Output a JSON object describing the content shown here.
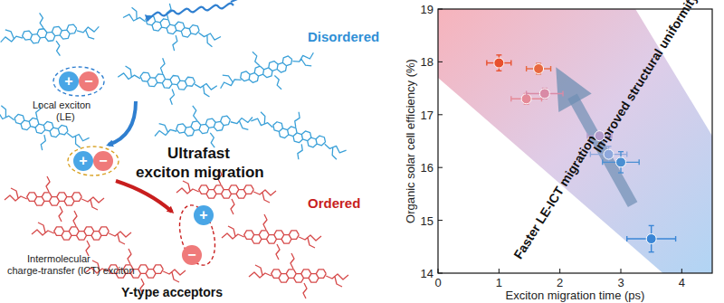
{
  "chart_data": {
    "type": "scatter",
    "x_label": "Exciton migration time (ps)",
    "y_label": "Organic solar cell efficiency (%)",
    "annotations": [
      "Improved structural uniformity",
      "Faster LE-ICT migration"
    ],
    "x": [
      1.0,
      1.65,
      1.45,
      1.75,
      2.65,
      2.8,
      3.0,
      3.5
    ],
    "values": [
      17.98,
      17.87,
      17.3,
      17.4,
      16.6,
      16.25,
      16.1,
      14.65
    ],
    "x_errors": [
      0.2,
      0.2,
      0.25,
      0.3,
      0.2,
      0.3,
      0.3,
      0.4
    ],
    "y_errors": [
      0.15,
      0.1,
      0.1,
      0.1,
      0.08,
      0.15,
      0.2,
      0.25
    ],
    "colors": [
      "#e8502e",
      "#e8683f",
      "#e58a98",
      "#d98aa6",
      "#b49ccc",
      "#8ea8dc",
      "#4a8fd2",
      "#3a86d6"
    ],
    "xlim": [
      0,
      4.5
    ],
    "xticks": [
      0,
      1,
      2,
      3,
      4
    ],
    "ylim": [
      14,
      19
    ],
    "yticks": [
      14,
      15,
      16,
      17,
      18,
      19
    ],
    "grid": false,
    "marker": "circle"
  },
  "diagram": {
    "disordered": "Disordered",
    "ordered": "Ordered",
    "local_exciton": [
      "Local exciton",
      "(LE)"
    ],
    "migration": [
      "Ultrafast",
      "exciton migration"
    ],
    "ict_exciton": [
      "Intermolecular",
      "charge-transfer (ICT) exciton"
    ],
    "caption": "Y-type acceptors",
    "charges": [
      "+",
      "−"
    ]
  }
}
